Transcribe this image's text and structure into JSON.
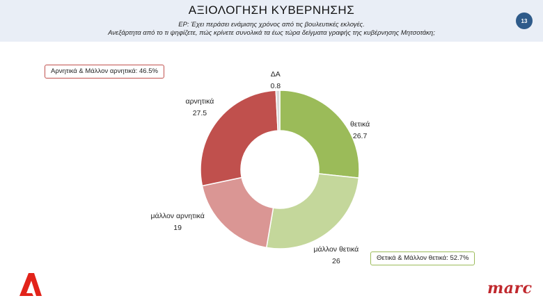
{
  "header": {
    "title": "ΑΞΙΟΛΟΓΗΣΗ ΚΥΒΕΡΝΗΣΗΣ",
    "subtitle_line1": "ΕΡ: Έχει περάσει ενάμισης χρόνος  από τις βουλευτικές εκλογές.",
    "subtitle_line2": "Ανεξάρτητα από το τι ψηφίζετε, πώς κρίνετε συνολικά τα έως τώρα δείγματα γραφής της κυβέρνησης Μητσοτάκη;",
    "page_number": "13"
  },
  "summary": {
    "negative": "Αρνητικά & Μάλλον αρνητικά: 46.5%",
    "positive": "Θετικά & Μάλλον θετικά: 52.7%"
  },
  "chart_data": {
    "type": "pie",
    "donut": true,
    "slices": [
      {
        "label": "θετικά",
        "value": 26.7,
        "value_label": "26.7",
        "color": "#9bbb59"
      },
      {
        "label": "μάλλον θετικά",
        "value": 26,
        "value_label": "26",
        "color": "#c4d79b"
      },
      {
        "label": "μάλλον αρνητικά",
        "value": 19,
        "value_label": "19",
        "color": "#da9694"
      },
      {
        "label": "αρνητικά",
        "value": 27.5,
        "value_label": "27.5",
        "color": "#c0504d"
      },
      {
        "label": "ΔΑ",
        "value": 0.8,
        "value_label": "0.8",
        "color": "#d9d9d9"
      }
    ]
  },
  "logos": {
    "alpha": "Α",
    "marc": "marc"
  },
  "colors": {
    "header_bg": "#e9eef6",
    "badge": "#2f5b8a",
    "brand_red": "#c0282d"
  }
}
